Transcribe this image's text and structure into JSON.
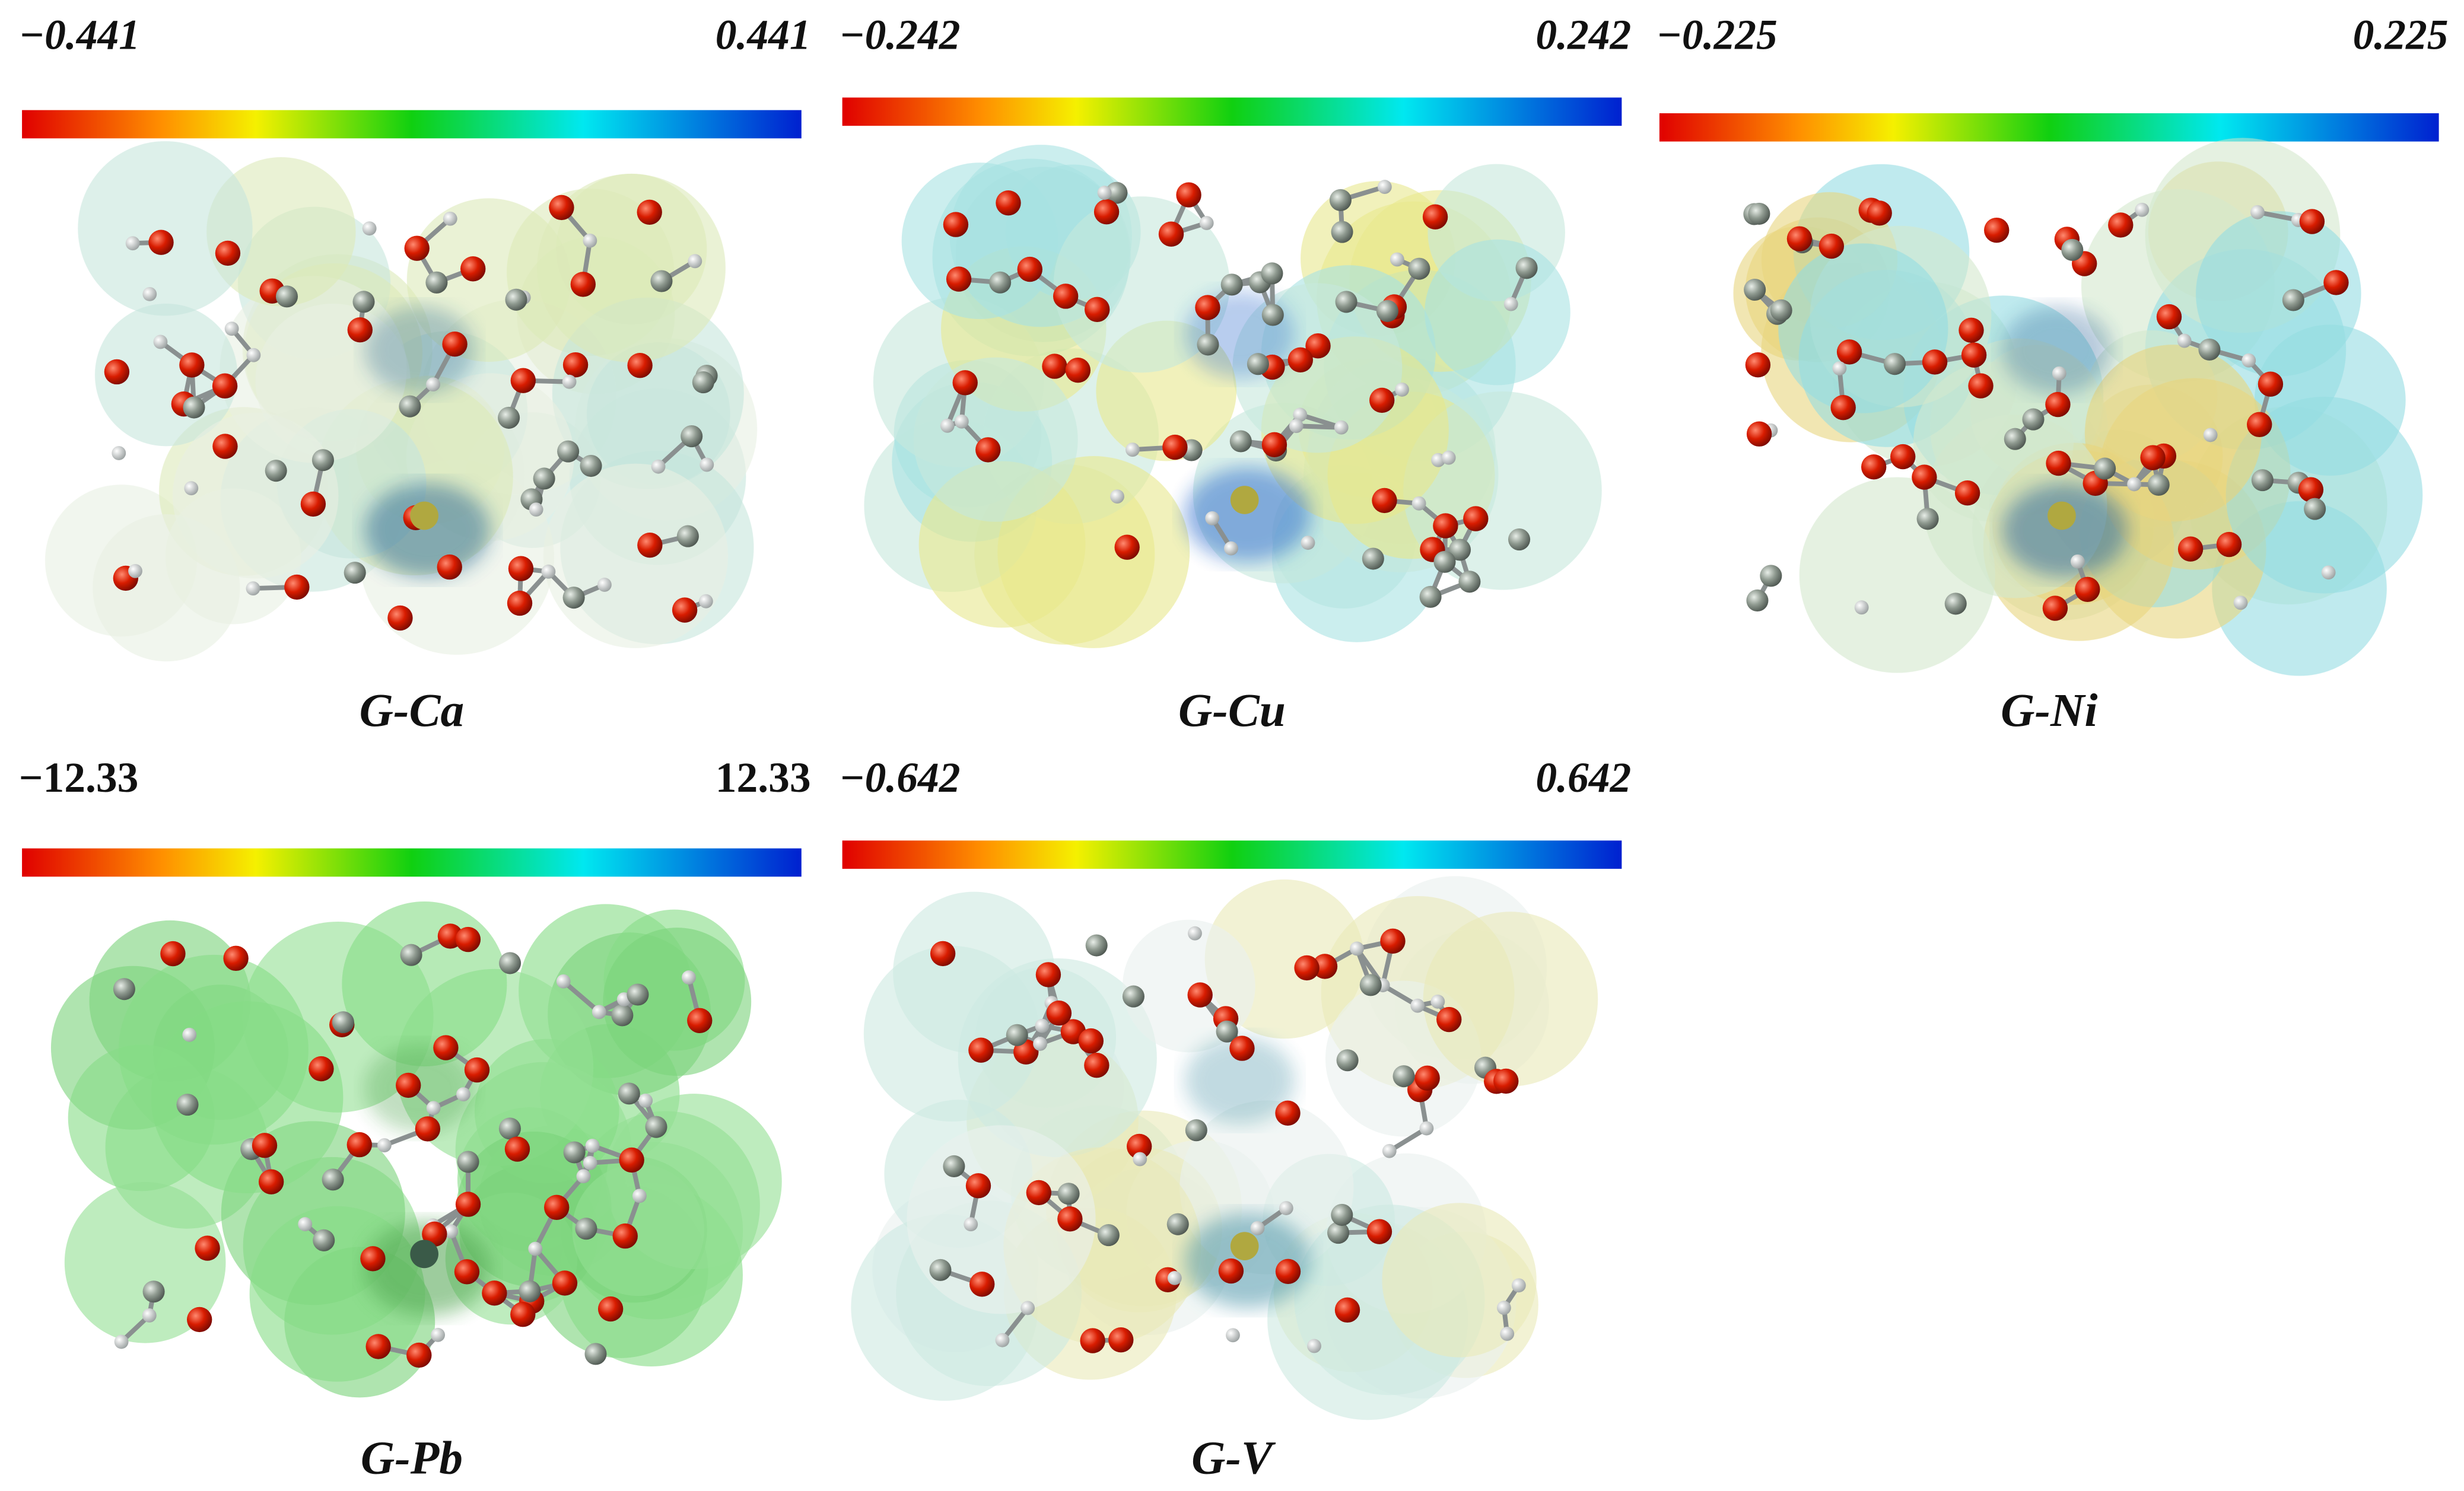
{
  "panels": [
    {
      "label": "G-Ca",
      "scale_min": "−0.441",
      "scale_max": "0.441"
    },
    {
      "label": "G-Cu",
      "scale_min": "−0.242",
      "scale_max": "0.242"
    },
    {
      "label": "G-Ni",
      "scale_min": "−0.225",
      "scale_max": "0.225"
    },
    {
      "label": "G-Pb",
      "scale_min": "−12.33",
      "scale_max": "12.33"
    },
    {
      "label": "G-V",
      "scale_min": "−0.642",
      "scale_max": "0.642"
    }
  ]
}
